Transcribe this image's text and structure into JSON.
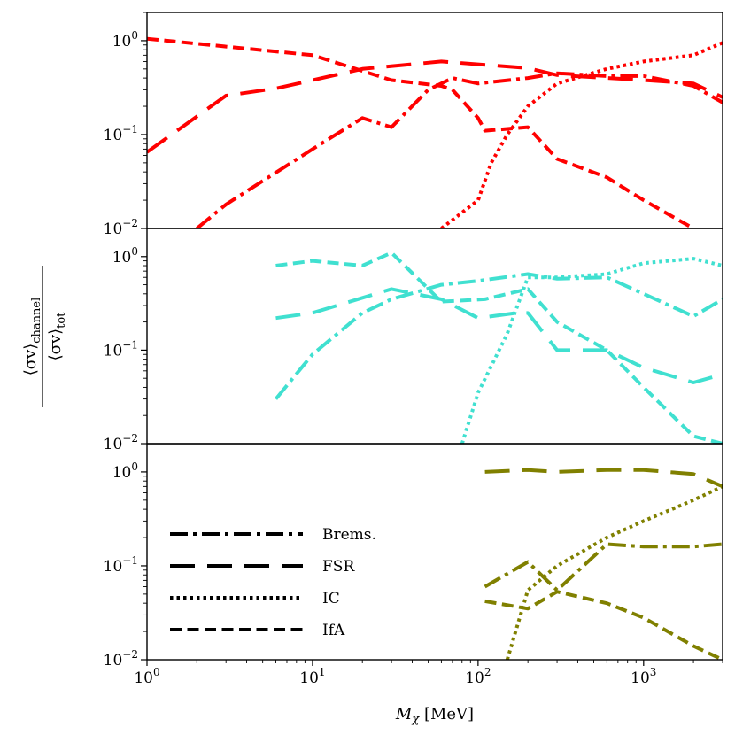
{
  "chart_data": {
    "type": "line",
    "xscale": "log",
    "yscale": "log",
    "xlim": [
      1,
      3000
    ],
    "ylim": [
      0.01,
      2
    ],
    "xlabel": "M_χ [MeV]",
    "ylabel": "⟨σv⟩_channel / ⟨σv⟩_tot",
    "x_ticks": [
      {
        "value": 1,
        "base": "10",
        "exp": "0"
      },
      {
        "value": 10,
        "base": "10",
        "exp": "1"
      },
      {
        "value": 100,
        "base": "10",
        "exp": "2"
      },
      {
        "value": 1000,
        "base": "10",
        "exp": "3"
      }
    ],
    "y_ticks": [
      {
        "value": 1,
        "base": "10",
        "exp": "0"
      },
      {
        "value": 0.1,
        "base": "10",
        "exp": "−1"
      },
      {
        "value": 0.01,
        "base": "10",
        "exp": "−2"
      }
    ],
    "legend": {
      "placement": "lower-left of bottom panel",
      "entries": [
        {
          "label": "Brems.",
          "style": "dashdot"
        },
        {
          "label": "FSR",
          "style": "longdash"
        },
        {
          "label": "IC",
          "style": "dotted"
        },
        {
          "label": "IfA",
          "style": "dashed"
        }
      ]
    },
    "panels": [
      {
        "color": "#ff0000",
        "series": [
          {
            "name": "Brems.",
            "style": "dashdot",
            "x": [
              2,
              3,
              10,
              20,
              30,
              50,
              70,
              100,
              200,
              300,
              600,
              1000,
              2000,
              3000
            ],
            "y": [
              0.01,
              0.018,
              0.07,
              0.15,
              0.12,
              0.3,
              0.4,
              0.35,
              0.4,
              0.45,
              0.42,
              0.42,
              0.33,
              0.22
            ]
          },
          {
            "name": "FSR",
            "style": "longdash",
            "x": [
              1,
              3,
              6,
              20,
              60,
              200,
              300,
              1000,
              2000,
              3000
            ],
            "y": [
              0.065,
              0.26,
              0.31,
              0.5,
              0.6,
              0.51,
              0.43,
              0.38,
              0.35,
              0.25
            ]
          },
          {
            "name": "IC",
            "style": "dotted",
            "x": [
              60,
              100,
              120,
              150,
              200,
              300,
              600,
              1000,
              2000,
              3000
            ],
            "y": [
              0.01,
              0.02,
              0.05,
              0.1,
              0.2,
              0.35,
              0.5,
              0.6,
              0.7,
              0.95
            ]
          },
          {
            "name": "IfA",
            "style": "dashed",
            "x": [
              1,
              10,
              30,
              60,
              70,
              100,
              110,
              200,
              300,
              600,
              1000,
              2000
            ],
            "y": [
              1.05,
              0.7,
              0.38,
              0.33,
              0.3,
              0.15,
              0.11,
              0.12,
              0.055,
              0.035,
              0.02,
              0.01
            ]
          }
        ]
      },
      {
        "color": "#40e0d0",
        "series": [
          {
            "name": "Brems.",
            "style": "dashdot",
            "x": [
              6,
              10,
              20,
              30,
              60,
              100,
              200,
              300,
              600,
              1000,
              2000,
              3000
            ],
            "y": [
              0.03,
              0.09,
              0.25,
              0.35,
              0.5,
              0.55,
              0.65,
              0.58,
              0.6,
              0.4,
              0.23,
              0.35
            ]
          },
          {
            "name": "FSR",
            "style": "longdash",
            "x": [
              6,
              10,
              30,
              60,
              100,
              170,
              200,
              300,
              600,
              1000,
              2000,
              3000
            ],
            "y": [
              0.22,
              0.25,
              0.45,
              0.35,
              0.22,
              0.25,
              0.25,
              0.1,
              0.1,
              0.065,
              0.045,
              0.055
            ]
          },
          {
            "name": "IC",
            "style": "dotted",
            "x": [
              80,
              100,
              150,
              200,
              300,
              600,
              1000,
              2000,
              3000
            ],
            "y": [
              0.01,
              0.035,
              0.15,
              0.6,
              0.6,
              0.65,
              0.85,
              0.95,
              0.8
            ]
          },
          {
            "name": "IfA",
            "style": "dashed",
            "x": [
              6,
              10,
              20,
              30,
              60,
              110,
              200,
              300,
              600,
              1000,
              2000,
              3000
            ],
            "y": [
              0.8,
              0.9,
              0.8,
              1.1,
              0.33,
              0.35,
              0.45,
              0.2,
              0.1,
              0.04,
              0.012,
              0.01
            ]
          }
        ]
      },
      {
        "color": "#808000",
        "series": [
          {
            "name": "Brems.",
            "style": "dashdot",
            "x": [
              110,
              200,
              300,
              600,
              1000,
              2000,
              3000
            ],
            "y": [
              0.06,
              0.11,
              0.055,
              0.17,
              0.16,
              0.16,
              0.17
            ]
          },
          {
            "name": "FSR",
            "style": "longdash",
            "x": [
              110,
              200,
              300,
              600,
              1000,
              2000,
              3000
            ],
            "y": [
              1.0,
              1.05,
              1.0,
              1.05,
              1.05,
              0.95,
              0.7
            ]
          },
          {
            "name": "IC",
            "style": "dotted",
            "x": [
              150,
              200,
              300,
              600,
              1000,
              2000,
              3000
            ],
            "y": [
              0.01,
              0.055,
              0.1,
              0.2,
              0.3,
              0.5,
              0.7
            ]
          },
          {
            "name": "IfA",
            "style": "dashed",
            "x": [
              110,
              200,
              300,
              600,
              1000,
              2000,
              3000
            ],
            "y": [
              0.042,
              0.035,
              0.053,
              0.04,
              0.028,
              0.014,
              0.01
            ]
          }
        ]
      }
    ]
  }
}
